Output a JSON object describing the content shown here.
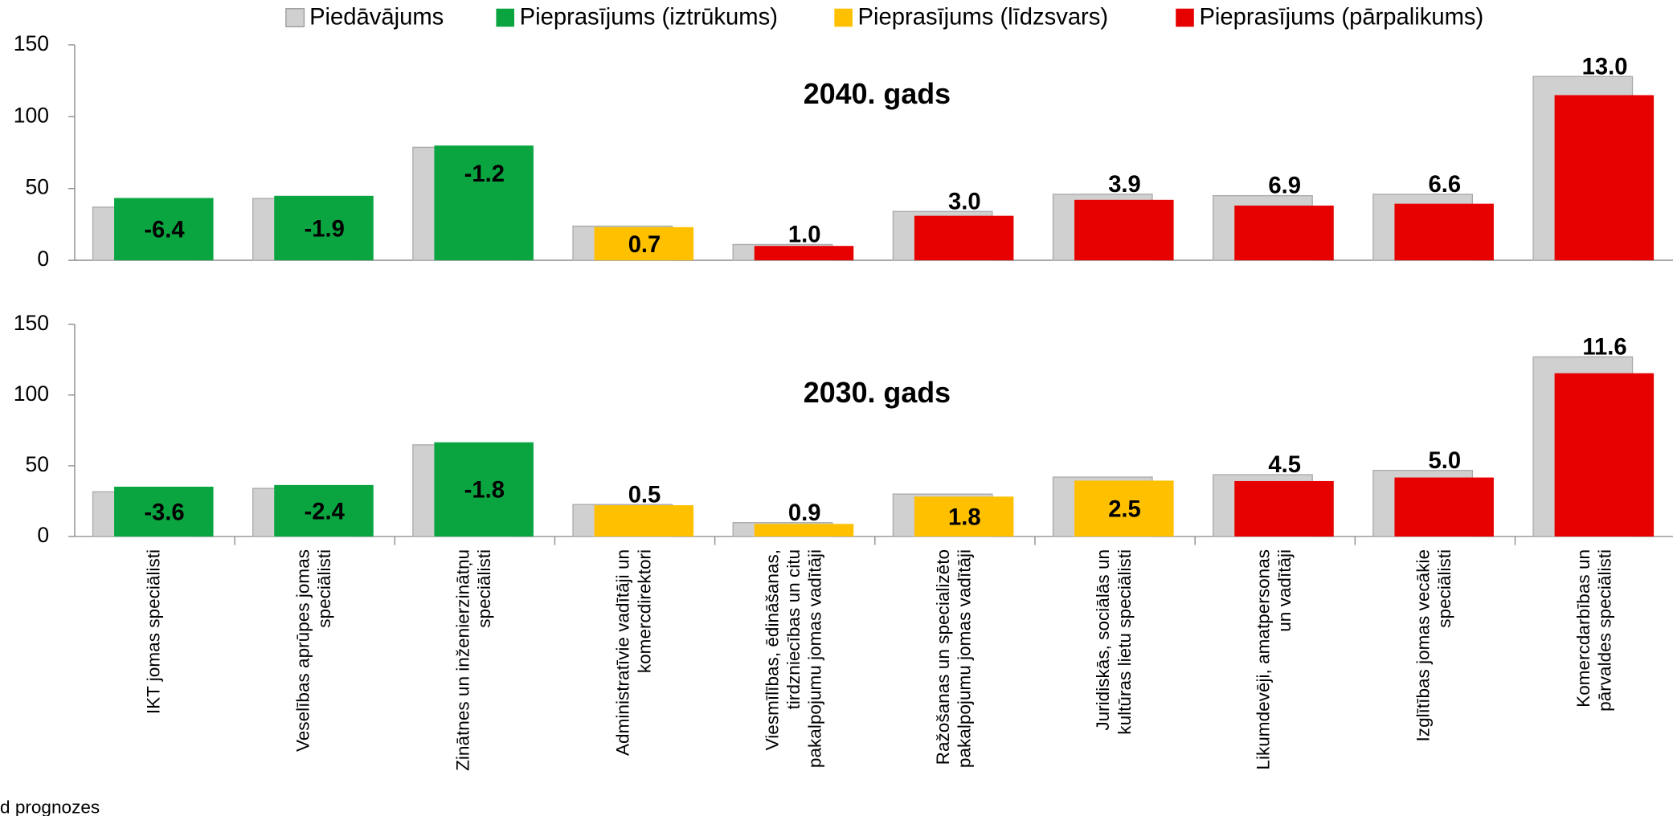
{
  "chart_data": {
    "type": "bar",
    "categories": [
      [
        "IKT jomas speciālisti"
      ],
      [
        "Veselības aprūpes jomas",
        "speciālisti"
      ],
      [
        "Zinātnes un inženierzinātņu",
        "speciālisti"
      ],
      [
        "Administratīvie vadītāji un",
        "komercdirektori"
      ],
      [
        "Viesmīlības, ēdināšanas,",
        "tirdzniecības un citu",
        "pakalpojumu jomas vadītāji"
      ],
      [
        "Ražošanas un specializēto",
        "pakalpojumu jomas vadītāji"
      ],
      [
        "Juridiskās, sociālās un",
        "kultūras lietu speciālisti"
      ],
      [
        "Likumdevēji, amatpersonas",
        "un vadītāji"
      ],
      [
        "Izglītības jomas vecākie",
        "speciālisti"
      ],
      [
        "Komercdarbības un",
        "pārvaldes speciālisti"
      ]
    ],
    "series": [
      {
        "name": "Piedāvājums",
        "color": "#d0d0d0"
      },
      {
        "name": "Pieprasījums (iztrūkums)",
        "color": "#0aa541"
      },
      {
        "name": "Pieprasījums (līdzsvars)",
        "color": "#ffc000"
      },
      {
        "name": "Pieprasījums (pārpalikums)",
        "color": "#e60000"
      }
    ],
    "footnote": "d prognozes",
    "panels": [
      {
        "title": "2040. gads",
        "ylim": [
          0,
          150
        ],
        "yticks": [
          0,
          50,
          100,
          150
        ],
        "supply": [
          37,
          43,
          78.7,
          23.8,
          11,
          34,
          46,
          45,
          46,
          128
        ],
        "demand": [
          43.4,
          44.9,
          79.9,
          23.1,
          10,
          31,
          42.1,
          38.1,
          39.4,
          115
        ],
        "demand_series": [
          1,
          1,
          1,
          2,
          3,
          3,
          3,
          3,
          3,
          3
        ],
        "gaps": [
          -6.4,
          -1.9,
          -1.2,
          0.7,
          1.0,
          3.0,
          3.9,
          6.9,
          6.6,
          13.0
        ],
        "gap_labels": [
          "-6.4",
          "-1.9",
          "-1.2",
          "0.7",
          "1.0",
          "3.0",
          "3.9",
          "6.9",
          "6.6",
          "13.0"
        ]
      },
      {
        "title": "2030. gads",
        "ylim": [
          0,
          150
        ],
        "yticks": [
          0,
          50,
          100,
          150
        ],
        "supply": [
          31.6,
          34,
          64.8,
          22.6,
          9.8,
          30,
          42,
          43.7,
          46.7,
          127
        ],
        "demand": [
          35.2,
          36.4,
          66.6,
          22.1,
          8.9,
          28.2,
          39.5,
          39.2,
          41.7,
          115.4
        ],
        "demand_series": [
          1,
          1,
          1,
          2,
          2,
          2,
          2,
          3,
          3,
          3
        ],
        "gaps": [
          -3.6,
          -2.4,
          -1.8,
          0.5,
          0.9,
          1.8,
          2.5,
          4.5,
          5.0,
          11.6
        ],
        "gap_labels": [
          "-3.6",
          "-2.4",
          "-1.8",
          "0.5",
          "0.9",
          "1.8",
          "2.5",
          "4.5",
          "5.0",
          "11.6"
        ]
      }
    ]
  }
}
